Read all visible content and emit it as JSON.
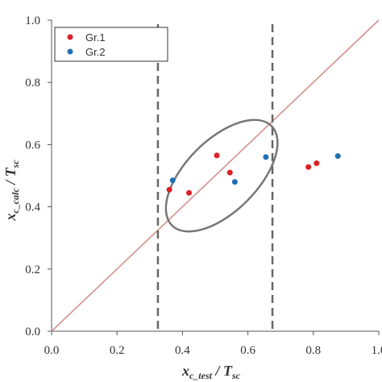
{
  "chart_data": {
    "type": "scatter",
    "title": "",
    "xlabel": {
      "main": "x",
      "sub": "c_test",
      "sep": " / ",
      "main2": "T",
      "sub2": "sc"
    },
    "ylabel": {
      "main": "x",
      "sub": "c_calc",
      "sep": " / ",
      "main2": "T",
      "sub2": "sc"
    },
    "xlim": [
      0.0,
      1.0
    ],
    "ylim": [
      0.0,
      1.0
    ],
    "x_ticks": [
      "0.0",
      "0.2",
      "0.4",
      "0.6",
      "0.8",
      "1.0"
    ],
    "y_ticks": [
      "0.0",
      "0.2",
      "0.4",
      "0.6",
      "0.8",
      "1.0"
    ],
    "grid": false,
    "legend_position": "top-left",
    "series": [
      {
        "name": "Gr.1",
        "color": "#dd1f26",
        "points": [
          {
            "x": 0.36,
            "y": 0.455
          },
          {
            "x": 0.42,
            "y": 0.445
          },
          {
            "x": 0.505,
            "y": 0.565
          },
          {
            "x": 0.545,
            "y": 0.51
          },
          {
            "x": 0.785,
            "y": 0.528
          },
          {
            "x": 0.81,
            "y": 0.54
          }
        ]
      },
      {
        "name": "Gr.2",
        "color": "#1f6fb2",
        "points": [
          {
            "x": 0.37,
            "y": 0.485
          },
          {
            "x": 0.56,
            "y": 0.48
          },
          {
            "x": 0.655,
            "y": 0.56
          },
          {
            "x": 0.875,
            "y": 0.563
          }
        ]
      }
    ],
    "reference_line": {
      "from": [
        0.0,
        0.0
      ],
      "to": [
        1.0,
        1.0
      ],
      "color": "#d4928e"
    },
    "vertical_dashed_lines": [
      0.325,
      0.675
    ],
    "ellipse": {
      "center": [
        0.52,
        0.5
      ],
      "rx": 0.215,
      "ry": 0.115,
      "angle_deg": 45,
      "color": "#777777"
    }
  }
}
